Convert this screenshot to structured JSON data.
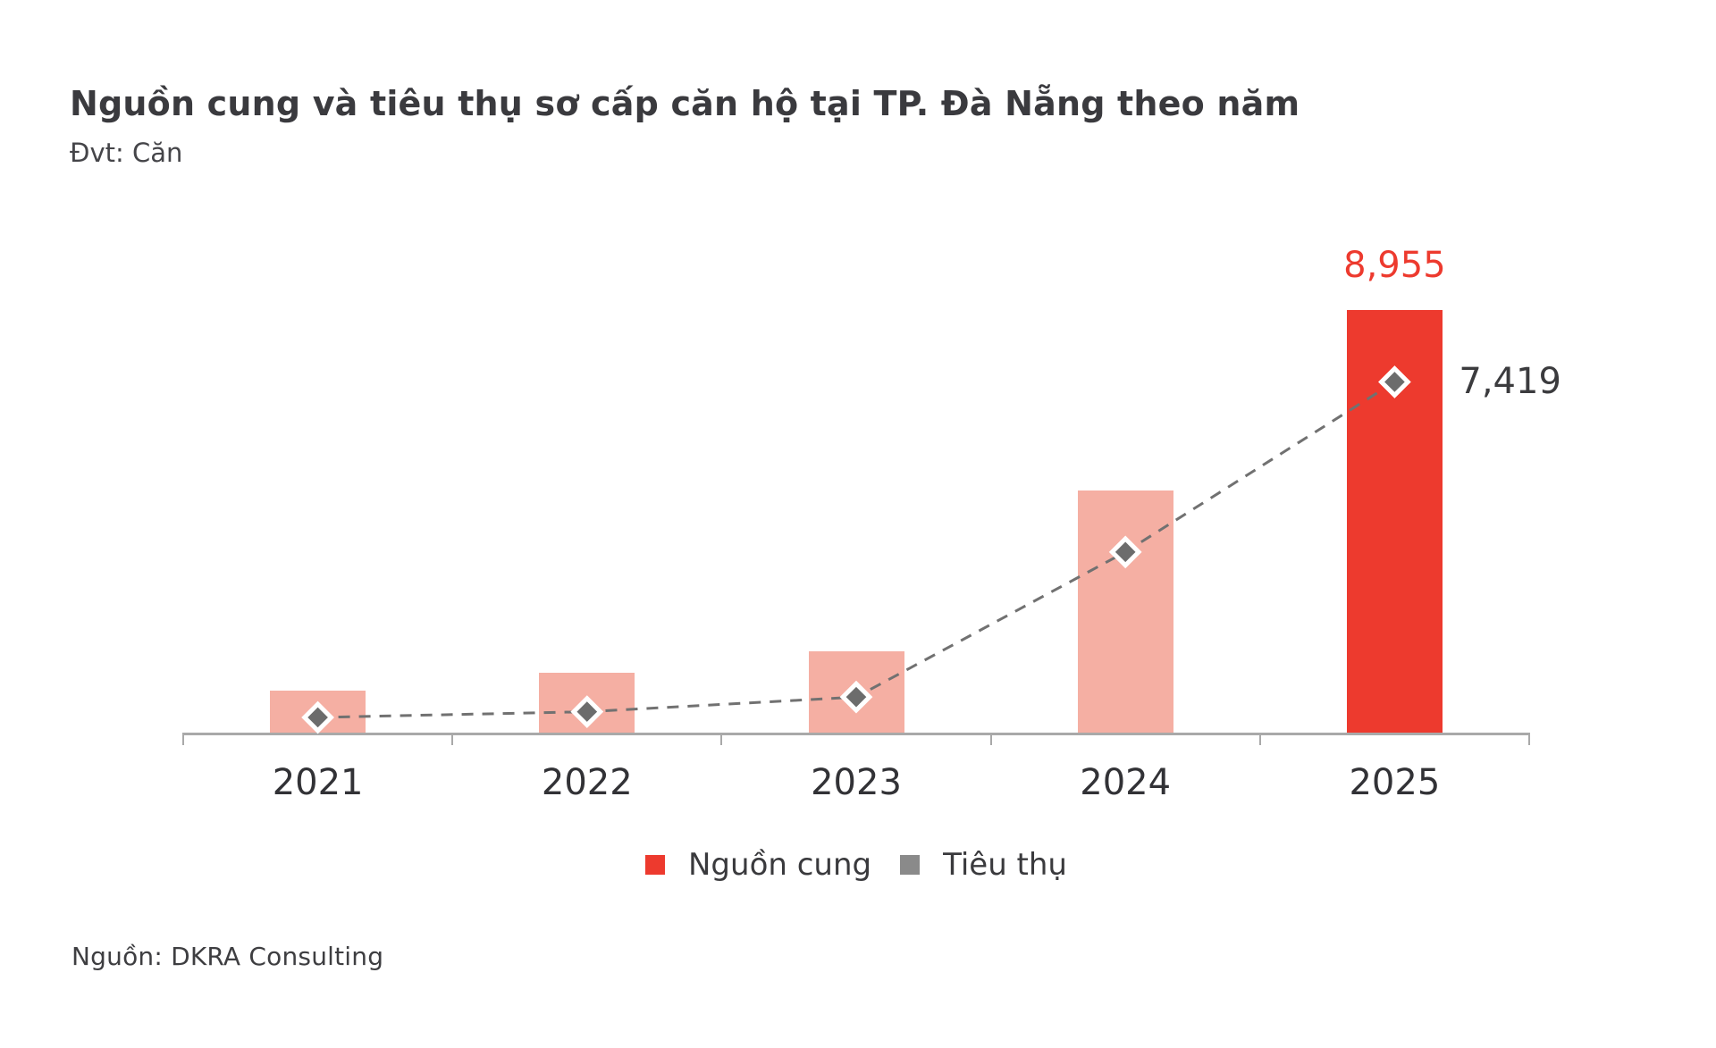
{
  "header": {
    "title": "Nguồn cung và tiêu thụ sơ cấp căn hộ tại TP. Đà Nẵng theo năm",
    "unit_note": "Đvt: Căn"
  },
  "footer": {
    "source": "Nguồn: DKRA Consulting"
  },
  "legend": [
    {
      "label": "Nguồn cung",
      "swatch_color": "#ed3a2e"
    },
    {
      "label": "Tiêu thụ",
      "swatch_color": "#8a8a8a"
    }
  ],
  "colors": {
    "supply_current": "#ed3a2e",
    "supply_past": "#f5afa3",
    "marker_fill": "#6c6c6c",
    "marker_stroke": "#ffffff",
    "dash_line": "#717171",
    "axis": "#a9a9a9",
    "text_dark": "#3a3a3e",
    "background": "#ffffff"
  },
  "chart_data": {
    "type": "bar",
    "categories": [
      "2021",
      "2022",
      "2023",
      "2024",
      "2025"
    ],
    "series": [
      {
        "name": "Nguồn cung",
        "kind": "bar",
        "values": [
          930,
          1300,
          1750,
          5150,
          8955
        ],
        "bar_colors": [
          "#f5afa3",
          "#f5afa3",
          "#f5afa3",
          "#f5afa3",
          "#ed3a2e"
        ],
        "data_labels": [
          null,
          null,
          null,
          null,
          "8,955"
        ],
        "label_color": "#ed3a2e"
      },
      {
        "name": "Tiêu thụ",
        "kind": "line",
        "values": [
          340,
          460,
          770,
          3830,
          7419
        ],
        "line_style": "dashed",
        "line_color": "#717171",
        "marker": "diamond",
        "marker_fill": "#6c6c6c",
        "marker_stroke": "#ffffff",
        "data_labels": [
          null,
          null,
          null,
          null,
          "7,419"
        ],
        "label_color": "#3b3b3e"
      }
    ],
    "ylim": [
      0,
      9500
    ],
    "grid": false,
    "y_axis_visible": false,
    "legend_position": "bottom-center"
  }
}
